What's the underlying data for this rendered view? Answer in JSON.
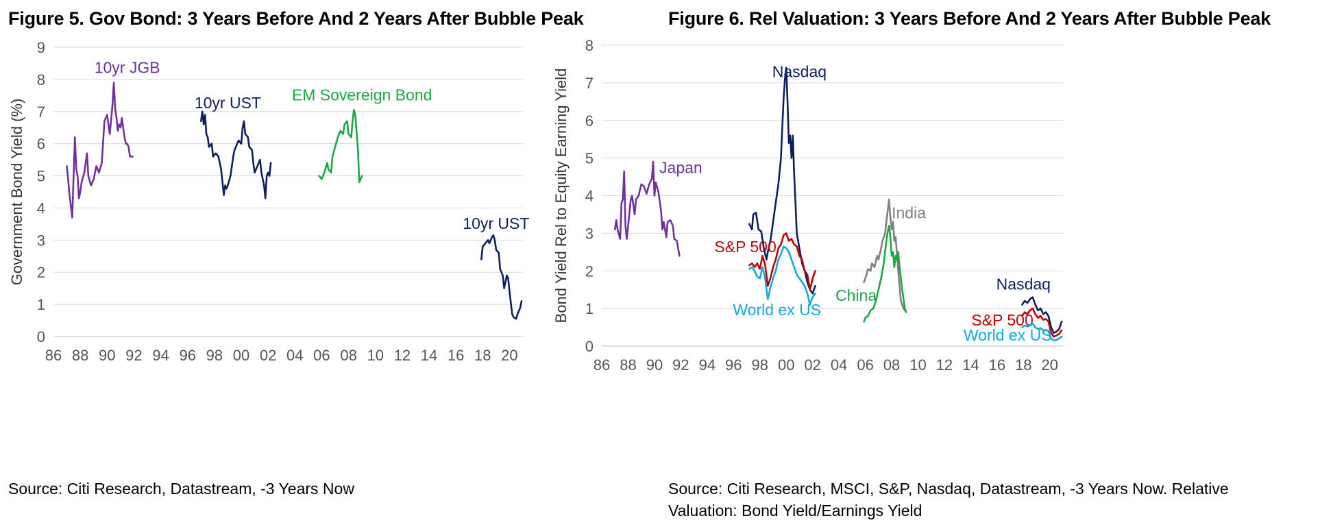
{
  "charts": [
    {
      "title": "Figure 5. Gov Bond: 3 Years Before And 2 Years After Bubble Peak",
      "source": "Source: Citi Research, Datastream, -3 Years Now"
    },
    {
      "title": "Figure 6. Rel Valuation: 3 Years Before And 2 Years After Bubble Peak",
      "source": "Source: Citi Research, MSCI, S&P, Nasdaq, Datastream, -3 Years Now. Relative Valuation: Bond Yield/Earnings Yield"
    }
  ],
  "chart_data": [
    {
      "type": "line",
      "title": "Figure 5. Gov Bond: 3 Years Before And 2 Years After Bubble Peak",
      "xlabel": "",
      "ylabel": "Government Bond Yield (%)",
      "xlim": [
        1986,
        2021
      ],
      "ylim": [
        0,
        9
      ],
      "xticks": [
        1986,
        1988,
        1990,
        1992,
        1994,
        1996,
        1998,
        2000,
        2002,
        2004,
        2006,
        2008,
        2010,
        2012,
        2014,
        2016,
        2018,
        2020
      ],
      "xtick_labels": [
        "86",
        "88",
        "90",
        "92",
        "94",
        "96",
        "98",
        "00",
        "02",
        "04",
        "06",
        "08",
        "10",
        "12",
        "14",
        "16",
        "18",
        "20"
      ],
      "yticks": [
        0,
        1,
        2,
        3,
        4,
        5,
        6,
        7,
        8,
        9
      ],
      "ytick_labels": [
        "0",
        "1",
        "2",
        "3",
        "4",
        "5",
        "6",
        "7",
        "8",
        "9"
      ],
      "grid": true,
      "series": [
        {
          "name": "10yr JGB",
          "color": "#7030A0",
          "x": [
            1987.0,
            1987.2,
            1987.4,
            1987.5,
            1987.6,
            1987.7,
            1987.8,
            1987.9,
            1988.0,
            1988.1,
            1988.3,
            1988.5,
            1988.6,
            1988.8,
            1989.0,
            1989.2,
            1989.4,
            1989.6,
            1989.8,
            1990.0,
            1990.2,
            1990.4,
            1990.5,
            1990.6,
            1990.7,
            1990.8,
            1990.9,
            1991.0,
            1991.1,
            1991.3,
            1991.4,
            1991.5,
            1991.6,
            1991.7,
            1991.9
          ],
          "y": [
            5.3,
            4.4,
            3.7,
            5.0,
            6.2,
            5.2,
            5.0,
            4.3,
            4.5,
            4.8,
            5.1,
            5.7,
            5.0,
            4.7,
            4.9,
            5.3,
            5.1,
            5.4,
            6.7,
            6.9,
            6.3,
            7.2,
            7.9,
            7.1,
            6.8,
            6.4,
            6.6,
            6.5,
            6.8,
            6.2,
            6.0,
            6.0,
            5.9,
            5.6,
            5.6
          ],
          "label_at": [
            1991.5,
            8.2
          ]
        },
        {
          "name": "10yr UST",
          "color": "#0D1F5C",
          "x": [
            1997.0,
            1997.1,
            1997.2,
            1997.3,
            1997.4,
            1997.5,
            1997.6,
            1997.8,
            1997.9,
            1998.1,
            1998.3,
            1998.5,
            1998.7,
            1998.8,
            1998.9,
            1999.0,
            1999.2,
            1999.4,
            1999.5,
            1999.6,
            1999.8,
            2000.0,
            2000.1,
            2000.2,
            2000.3,
            2000.5,
            2000.6,
            2000.8,
            2000.9,
            2001.0,
            2001.2,
            2001.4,
            2001.5,
            2001.7,
            2001.8,
            2001.9,
            2002.0,
            2002.1,
            2002.2
          ],
          "y": [
            6.7,
            7.0,
            6.6,
            6.9,
            6.3,
            6.2,
            5.9,
            6.0,
            5.6,
            5.7,
            5.6,
            5.2,
            4.4,
            4.7,
            4.6,
            4.7,
            5.0,
            5.6,
            5.8,
            5.9,
            6.1,
            6.0,
            6.5,
            6.7,
            6.3,
            6.2,
            5.9,
            5.8,
            5.4,
            5.1,
            5.3,
            5.5,
            5.1,
            4.7,
            4.3,
            5.0,
            5.1,
            5.0,
            5.4
          ],
          "label_at": [
            1999.0,
            7.1
          ]
        },
        {
          "name": "EM Sovereign Bond",
          "color": "#1BA744",
          "x": [
            2005.8,
            2006.0,
            2006.2,
            2006.4,
            2006.5,
            2006.7,
            2006.8,
            2007.0,
            2007.2,
            2007.4,
            2007.6,
            2007.7,
            2007.9,
            2008.0,
            2008.2,
            2008.3,
            2008.4,
            2008.5,
            2008.7,
            2008.8,
            2009.0
          ],
          "y": [
            5.0,
            4.9,
            5.1,
            5.4,
            5.2,
            5.1,
            5.6,
            5.9,
            6.2,
            6.4,
            6.3,
            6.6,
            6.7,
            6.3,
            6.2,
            6.7,
            7.05,
            6.9,
            5.8,
            4.8,
            5.0
          ],
          "label_at": [
            2009.0,
            7.35
          ]
        },
        {
          "name": "10yr UST",
          "color": "#0D1F5C",
          "x": [
            2017.9,
            2018.0,
            2018.2,
            2018.4,
            2018.5,
            2018.7,
            2018.8,
            2018.9,
            2019.0,
            2019.2,
            2019.3,
            2019.5,
            2019.6,
            2019.8,
            2019.9,
            2020.0,
            2020.2,
            2020.3,
            2020.5,
            2020.6,
            2020.8,
            2020.9
          ],
          "y": [
            2.4,
            2.8,
            2.9,
            3.0,
            2.9,
            3.1,
            3.15,
            3.0,
            2.7,
            2.6,
            2.1,
            1.9,
            1.5,
            1.9,
            1.8,
            1.4,
            0.7,
            0.6,
            0.55,
            0.7,
            0.9,
            1.1
          ],
          "label_at": [
            2019.0,
            3.35
          ]
        }
      ]
    },
    {
      "type": "line",
      "title": "Figure 6. Rel Valuation: 3 Years Before And 2 Years After Bubble Peak",
      "xlabel": "",
      "ylabel": "Bond Yield Rel to Equity Earning Yield",
      "xlim": [
        1986,
        2021
      ],
      "ylim": [
        0,
        8
      ],
      "xticks": [
        1986,
        1988,
        1990,
        1992,
        1994,
        1996,
        1998,
        2000,
        2002,
        2004,
        2006,
        2008,
        2010,
        2012,
        2014,
        2016,
        2018,
        2020
      ],
      "xtick_labels": [
        "86",
        "88",
        "90",
        "92",
        "94",
        "96",
        "98",
        "00",
        "02",
        "04",
        "06",
        "08",
        "10",
        "12",
        "14",
        "16",
        "18",
        "20"
      ],
      "yticks": [
        0,
        1,
        2,
        3,
        4,
        5,
        6,
        7,
        8
      ],
      "ytick_labels": [
        "0",
        "1",
        "2",
        "3",
        "4",
        "5",
        "6",
        "7",
        "8"
      ],
      "grid": true,
      "series": [
        {
          "name": "Japan",
          "color": "#7030A0",
          "x": [
            1987.0,
            1987.1,
            1987.2,
            1987.4,
            1987.5,
            1987.6,
            1987.7,
            1987.8,
            1987.9,
            1988.0,
            1988.2,
            1988.3,
            1988.5,
            1988.6,
            1988.8,
            1989.0,
            1989.2,
            1989.4,
            1989.6,
            1989.8,
            1989.9,
            1990.0,
            1990.1,
            1990.3,
            1990.5,
            1990.6,
            1990.7,
            1990.9,
            1991.0,
            1991.2,
            1991.4,
            1991.5,
            1991.7,
            1991.9
          ],
          "y": [
            3.1,
            3.35,
            3.1,
            2.85,
            3.8,
            3.9,
            4.65,
            3.2,
            2.85,
            3.2,
            3.9,
            4.0,
            3.5,
            3.9,
            4.0,
            4.3,
            4.25,
            4.05,
            4.3,
            4.45,
            4.9,
            4.0,
            4.35,
            4.1,
            3.6,
            3.1,
            3.3,
            2.9,
            3.3,
            3.35,
            3.2,
            2.85,
            2.8,
            2.4
          ],
          "label_at": [
            1992.0,
            4.6
          ]
        },
        {
          "name": "Nasdaq",
          "color": "#0D1F5C",
          "x": [
            1997.2,
            1997.4,
            1997.5,
            1997.7,
            1997.9,
            1998.1,
            1998.3,
            1998.5,
            1998.6,
            1998.8,
            1999.0,
            1999.2,
            1999.4,
            1999.6,
            1999.7,
            1999.8,
            1999.9,
            2000.0,
            2000.1,
            2000.2,
            2000.3,
            2000.4,
            2000.5,
            2000.6,
            2000.7,
            2000.8,
            2001.0,
            2001.2,
            2001.4,
            2001.6,
            2001.8,
            2002.0,
            2002.2
          ],
          "y": [
            3.25,
            3.1,
            3.5,
            3.55,
            3.1,
            3.05,
            2.6,
            2.3,
            2.5,
            2.8,
            3.3,
            3.8,
            4.3,
            5.0,
            5.8,
            6.6,
            7.1,
            7.4,
            6.5,
            5.4,
            5.6,
            5.0,
            5.6,
            4.6,
            3.8,
            3.0,
            2.6,
            2.2,
            2.0,
            1.7,
            1.5,
            1.4,
            1.6
          ],
          "label_at": [
            2001.0,
            7.15
          ]
        },
        {
          "name": "S&P 500",
          "color": "#C00000",
          "x": [
            1997.2,
            1997.4,
            1997.6,
            1997.8,
            1998.0,
            1998.2,
            1998.4,
            1998.6,
            1998.8,
            1999.0,
            1999.2,
            1999.4,
            1999.6,
            1999.8,
            2000.0,
            2000.2,
            2000.4,
            2000.6,
            2000.8,
            2001.0,
            2001.2,
            2001.4,
            2001.6,
            2001.8,
            2002.0,
            2002.2
          ],
          "y": [
            2.15,
            2.2,
            2.1,
            2.2,
            2.05,
            2.4,
            2.15,
            1.6,
            1.8,
            2.1,
            2.3,
            2.6,
            2.7,
            2.95,
            3.0,
            2.8,
            2.85,
            2.7,
            2.65,
            2.4,
            2.3,
            2.0,
            1.9,
            1.5,
            1.8,
            2.0
          ],
          "label_at": [
            1996.9,
            2.5
          ]
        },
        {
          "name": "World ex US",
          "color": "#12A8E0",
          "x": [
            1997.2,
            1997.4,
            1997.6,
            1997.8,
            1998.0,
            1998.2,
            1998.4,
            1998.6,
            1998.8,
            1999.0,
            1999.2,
            1999.4,
            1999.6,
            1999.8,
            2000.0,
            2000.2,
            2000.4,
            2000.6,
            2000.8,
            2001.0,
            2001.2,
            2001.4,
            2001.6,
            2001.8,
            2002.0,
            2002.2
          ],
          "y": [
            2.05,
            2.1,
            2.0,
            1.85,
            1.8,
            2.1,
            1.8,
            1.25,
            1.55,
            1.8,
            2.0,
            2.3,
            2.45,
            2.65,
            2.6,
            2.5,
            2.3,
            2.1,
            1.9,
            1.8,
            1.7,
            1.6,
            1.4,
            1.1,
            1.3,
            1.4
          ],
          "label_at": [
            1999.3,
            0.82
          ]
        },
        {
          "name": "India",
          "color": "#808080",
          "x": [
            2005.9,
            2006.1,
            2006.2,
            2006.4,
            2006.5,
            2006.7,
            2006.9,
            2007.0,
            2007.2,
            2007.3,
            2007.5,
            2007.6,
            2007.7,
            2007.8,
            2007.9,
            2008.0,
            2008.1,
            2008.2,
            2008.3,
            2008.5,
            2008.7,
            2008.9,
            2009.0
          ],
          "y": [
            1.7,
            1.9,
            2.05,
            2.0,
            2.2,
            2.1,
            2.4,
            2.3,
            2.6,
            2.8,
            3.0,
            3.3,
            3.6,
            3.9,
            3.45,
            3.1,
            3.3,
            2.8,
            2.9,
            2.0,
            1.2,
            1.0,
            0.95
          ],
          "label_at": [
            2009.3,
            3.4
          ]
        },
        {
          "name": "China",
          "color": "#1BA744",
          "x": [
            2005.9,
            2006.0,
            2006.2,
            2006.4,
            2006.6,
            2006.8,
            2007.0,
            2007.2,
            2007.4,
            2007.5,
            2007.6,
            2007.7,
            2007.8,
            2007.9,
            2008.0,
            2008.1,
            2008.2,
            2008.3,
            2008.4,
            2008.5,
            2008.6,
            2008.8,
            2009.0,
            2009.1
          ],
          "y": [
            0.65,
            0.75,
            0.8,
            0.95,
            1.0,
            1.2,
            1.5,
            1.8,
            2.2,
            2.5,
            2.8,
            3.05,
            3.2,
            2.9,
            2.4,
            2.5,
            2.1,
            2.4,
            2.3,
            2.5,
            2.1,
            1.5,
            1.0,
            0.9
          ],
          "label_at": [
            2005.3,
            1.2
          ]
        },
        {
          "name": "Nasdaq",
          "color": "#0D1F5C",
          "x": [
            2017.9,
            2018.1,
            2018.3,
            2018.5,
            2018.7,
            2018.9,
            2019.1,
            2019.3,
            2019.5,
            2019.7,
            2019.9,
            2020.1,
            2020.3,
            2020.5,
            2020.7,
            2020.9
          ],
          "y": [
            1.1,
            1.2,
            1.15,
            1.25,
            1.3,
            1.1,
            0.95,
            1.0,
            0.85,
            0.9,
            0.8,
            0.5,
            0.35,
            0.38,
            0.45,
            0.65
          ],
          "label_at": [
            2018.0,
            1.5
          ]
        },
        {
          "name": "S&P 500",
          "color": "#C00000",
          "x": [
            2017.9,
            2018.1,
            2018.3,
            2018.5,
            2018.7,
            2018.9,
            2019.1,
            2019.3,
            2019.5,
            2019.7,
            2019.9,
            2020.1,
            2020.3,
            2020.5,
            2020.7,
            2020.9
          ],
          "y": [
            0.8,
            0.9,
            0.85,
            0.95,
            1.0,
            0.85,
            0.75,
            0.8,
            0.7,
            0.72,
            0.65,
            0.35,
            0.25,
            0.28,
            0.32,
            0.42
          ],
          "label_at": [
            2016.4,
            0.55
          ]
        },
        {
          "name": "World ex US",
          "color": "#12A8E0",
          "x": [
            2017.9,
            2018.1,
            2018.3,
            2018.5,
            2018.7,
            2018.9,
            2019.1,
            2019.3,
            2019.5,
            2019.7,
            2019.9,
            2020.1,
            2020.3,
            2020.5,
            2020.7,
            2020.9
          ],
          "y": [
            0.5,
            0.55,
            0.52,
            0.55,
            0.6,
            0.5,
            0.45,
            0.48,
            0.42,
            0.43,
            0.4,
            0.2,
            0.15,
            0.16,
            0.2,
            0.25
          ],
          "label_at": [
            2016.8,
            0.15
          ]
        }
      ]
    }
  ]
}
